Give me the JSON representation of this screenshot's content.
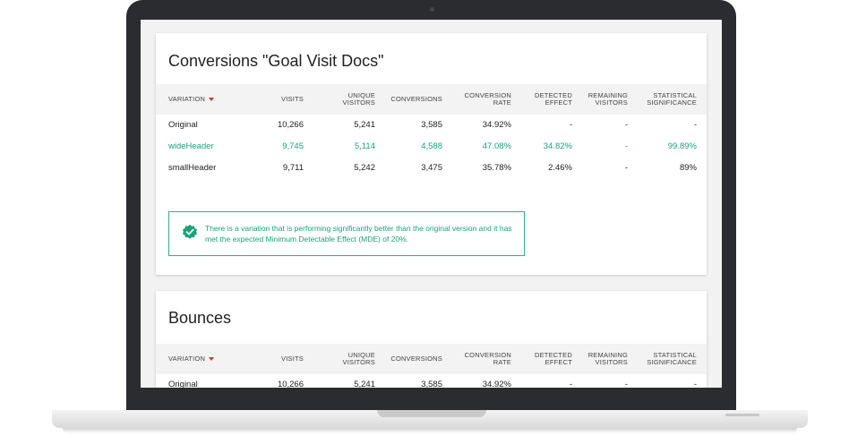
{
  "colors": {
    "accent_green": "#1aa37a",
    "sort_arrow": "#d9352b",
    "bezel": "#2b2c30"
  },
  "columns": [
    "VARIATION",
    "VISITS",
    "UNIQUE VISITORS",
    "CONVERSIONS",
    "CONVERSION RATE",
    "DETECTED EFFECT",
    "REMAINING VISITORS",
    "STATISTICAL SIGNIFICANCE"
  ],
  "conversions_card": {
    "title": "Conversions \"Goal Visit Docs\"",
    "rows": [
      {
        "variation": "Original",
        "visits": "10,266",
        "unique_visitors": "5,241",
        "conversions": "3,585",
        "conversion_rate": "34.92%",
        "detected_effect": "-",
        "remaining_visitors": "-",
        "significance": "-"
      },
      {
        "variation": "wideHeader",
        "visits": "9,745",
        "unique_visitors": "5,114",
        "conversions": "4,588",
        "conversion_rate": "47.08%",
        "detected_effect": "34.82%",
        "remaining_visitors": "-",
        "significance": "99.89%"
      },
      {
        "variation": "smallHeader",
        "visits": "9,711",
        "unique_visitors": "5,242",
        "conversions": "3,475",
        "conversion_rate": "35.78%",
        "detected_effect": "2.46%",
        "remaining_visitors": "-",
        "significance": "89%"
      }
    ],
    "notice": {
      "icon": "check-badge-icon",
      "text": "There is a variation that is performing significantly better than the original version and it has met the expected Minimum Detectable Effect (MDE) of 20%."
    }
  },
  "bounces_card": {
    "title": "Bounces",
    "rows": [
      {
        "variation": "Original",
        "visits": "10,266",
        "unique_visitors": "5,241",
        "conversions": "3,585",
        "conversion_rate": "34.92%",
        "detected_effect": "-",
        "remaining_visitors": "-",
        "significance": "-"
      }
    ]
  }
}
